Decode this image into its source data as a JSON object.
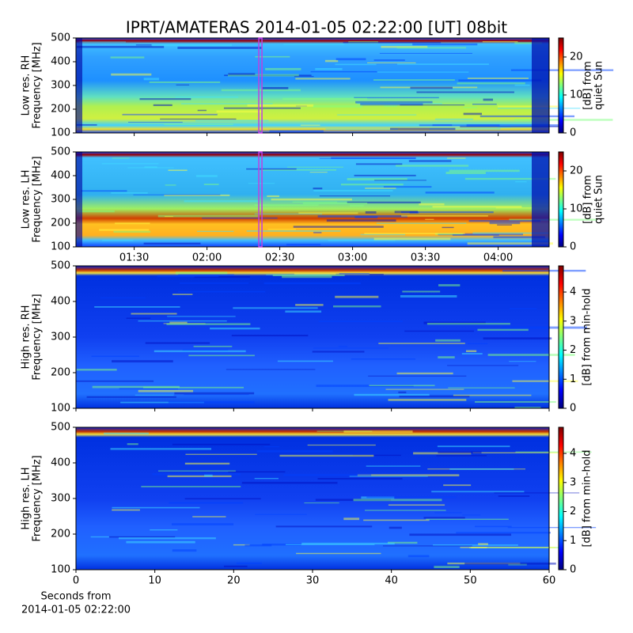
{
  "title": "IPRT/AMATERAS 2014-01-05 02:22:00 [UT]   08bit",
  "chart_data": [
    {
      "type": "heatmap",
      "ylabel": [
        "Low res. RH",
        "Frequency [MHz]"
      ],
      "ylim": [
        100,
        500
      ],
      "yticks": [
        100,
        200,
        300,
        400,
        500
      ],
      "xlim": [
        66,
        261
      ],
      "marker_x": 142,
      "marker_color": "#c040e0",
      "colorbar_label": [
        "[dB] from",
        "quiet Sun"
      ],
      "clim": [
        0,
        25
      ],
      "cticks": [
        0,
        10,
        20
      ],
      "colormap": "jet"
    },
    {
      "type": "heatmap",
      "ylabel": [
        "Low res. LH",
        "Frequency [MHz]"
      ],
      "ylim": [
        100,
        500
      ],
      "yticks": [
        100,
        200,
        300,
        400,
        500
      ],
      "xlim": [
        66,
        261
      ],
      "xticks": [
        {
          "value": 90,
          "label": "01:30"
        },
        {
          "value": 120,
          "label": "02:00"
        },
        {
          "value": 150,
          "label": "02:30"
        },
        {
          "value": 180,
          "label": "03:00"
        },
        {
          "value": 210,
          "label": "03:30"
        },
        {
          "value": 240,
          "label": "04:00"
        }
      ],
      "marker_x": 142,
      "marker_color": "#c040e0",
      "colorbar_label": [
        "[dB] from",
        "quiet Sun"
      ],
      "clim": [
        0,
        25
      ],
      "cticks": [
        0,
        10,
        20
      ],
      "colormap": "jet"
    },
    {
      "type": "heatmap",
      "ylabel": [
        "High res. RH",
        "Frequency [MHz]"
      ],
      "ylim": [
        100,
        500
      ],
      "yticks": [
        100,
        200,
        300,
        400,
        500
      ],
      "colorbar_label": [
        "[dB] from min-hold"
      ],
      "clim": [
        0,
        4.9
      ],
      "cticks": [
        0,
        1,
        2,
        3,
        4
      ],
      "colormap": "jet"
    },
    {
      "type": "heatmap",
      "ylabel": [
        "High res. LH",
        "Frequency [MHz]"
      ],
      "ylim": [
        100,
        500
      ],
      "yticks": [
        100,
        200,
        300,
        400,
        500
      ],
      "xlim": [
        0,
        60
      ],
      "xticks": [
        0,
        10,
        20,
        30,
        40,
        50,
        60
      ],
      "xlabel": [
        "Seconds from",
        "2014-01-05 02:22:00"
      ],
      "colorbar_label": [
        "[dB] from min-hold"
      ],
      "clim": [
        0,
        4.9
      ],
      "cticks": [
        0,
        1,
        2,
        3,
        4
      ],
      "colormap": "jet"
    }
  ]
}
